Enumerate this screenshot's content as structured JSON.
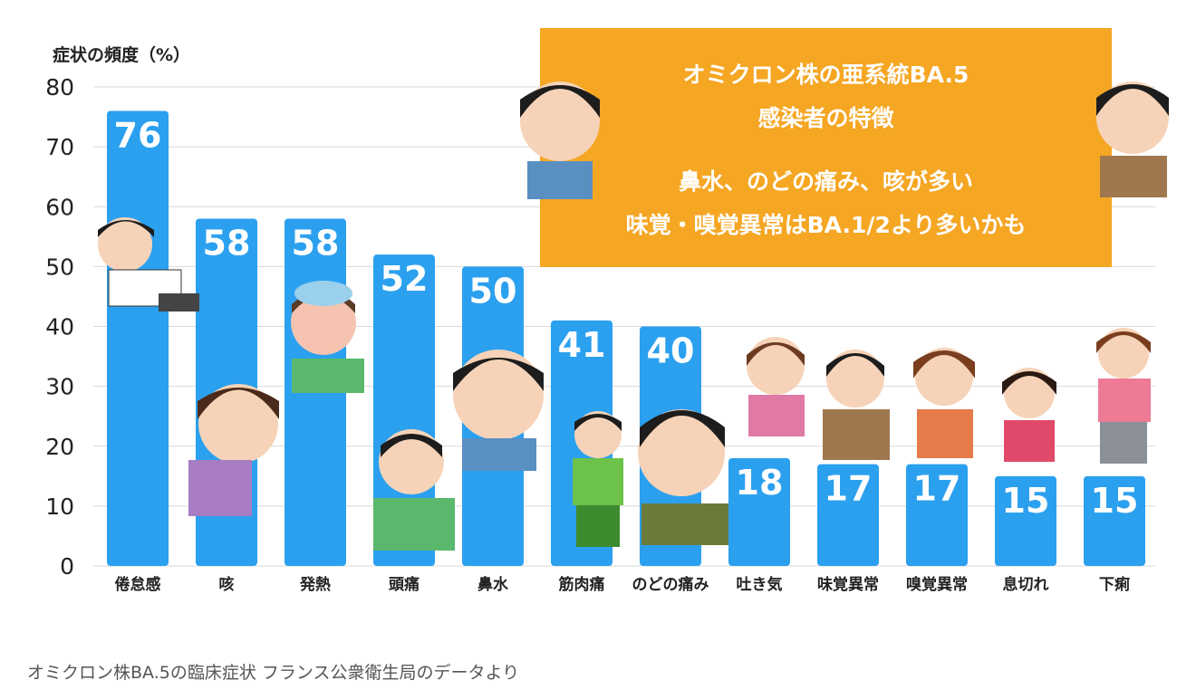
{
  "unit_label": "症状の頻度（%）",
  "callout": {
    "line1": "オミクロン株の亜系統BA.5",
    "line2": "感染者の特徴",
    "line3": "鼻水、のどの痛み、咳が多い",
    "line4": "味覚・嗅覚異常はBA.1/2より多いかも"
  },
  "caption": "オミクロン株BA.5の臨床症状 フランス公衆衛生局のデータより",
  "colors": {
    "bar": "#2ba0ef",
    "callout_bg": "#f5a623",
    "grid": "#d9d9d9",
    "value_label": "#ffffff"
  },
  "chart_data": {
    "type": "bar",
    "categories": [
      "倦怠感",
      "咳",
      "発熱",
      "頭痛",
      "鼻水",
      "筋肉痛",
      "のどの痛み",
      "吐き気",
      "味覚異常",
      "嗅覚異常",
      "息切れ",
      "下痢"
    ],
    "values": [
      76,
      58,
      58,
      52,
      50,
      41,
      40,
      18,
      17,
      17,
      15,
      15
    ],
    "ylim": [
      0,
      80
    ],
    "yticks": [
      0,
      10,
      20,
      30,
      40,
      50,
      60,
      70,
      80
    ],
    "ylabel": "症状の頻度（%）",
    "grid": true,
    "data_labels": true
  }
}
